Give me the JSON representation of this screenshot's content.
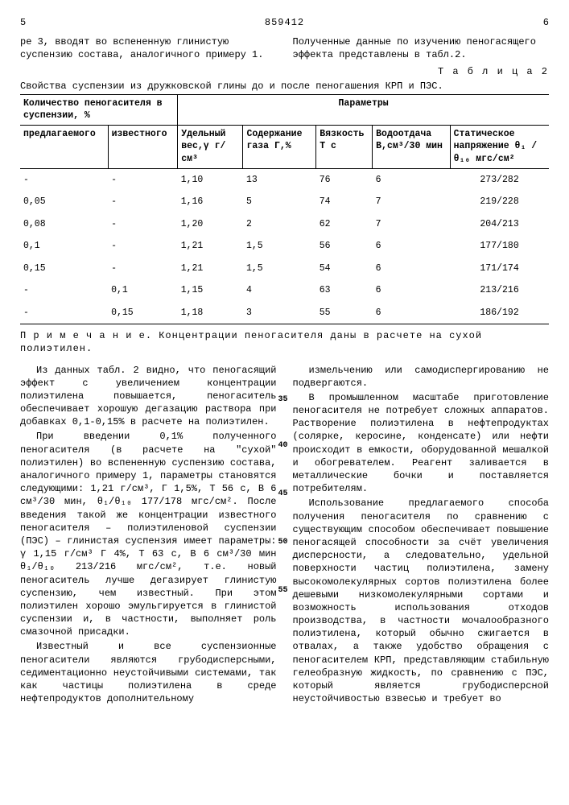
{
  "header": {
    "left_num": "5",
    "doc_num": "859412",
    "right_num": "6"
  },
  "intro": {
    "left": "ре 3, вводят во вспененную глинистую суспензию состава, аналогичного примеру 1.",
    "right": "Полученные данные по изучению пеногасящего эффекта представлены в табл.2."
  },
  "table_label": "Т а б л и ц а  2",
  "table_caption": "Свойства суспензии из дружковской глины до и после пеногашения КРП и ПЭС.",
  "th": {
    "qty": "Количество пеногасителя в суспензии, %",
    "params": "Параметры",
    "proposed": "предлагаемого",
    "known": "известного",
    "weight": "Удельный вес,γ г/см³",
    "gas": "Содержание газа Г,%",
    "visc": "Вязкость Т с",
    "water": "Водоотдача В,см³/30 мин",
    "static": "Статическое напряжение θ₁ /θ₁₀ мгс/см²"
  },
  "rows": [
    {
      "a": "-",
      "b": "-",
      "c": "1,10",
      "d": "13",
      "e": "76",
      "f": "6",
      "g": "273/282"
    },
    {
      "a": "0,05",
      "b": "-",
      "c": "1,16",
      "d": "5",
      "e": "74",
      "f": "7",
      "g": "219/228"
    },
    {
      "a": "0,08",
      "b": "-",
      "c": "1,20",
      "d": "2",
      "e": "62",
      "f": "7",
      "g": "204/213"
    },
    {
      "a": "0,1",
      "b": "-",
      "c": "1,21",
      "d": "1,5",
      "e": "56",
      "f": "6",
      "g": "177/180"
    },
    {
      "a": "0,15",
      "b": "-",
      "c": "1,21",
      "d": "1,5",
      "e": "54",
      "f": "6",
      "g": "171/174"
    },
    {
      "a": "-",
      "b": "0,1",
      "c": "1,15",
      "d": "4",
      "e": "63",
      "f": "6",
      "g": "213/216"
    },
    {
      "a": "-",
      "b": "0,15",
      "c": "1,18",
      "d": "3",
      "e": "55",
      "f": "6",
      "g": "186/192"
    }
  ],
  "note": "П р и м е ч а н и е. Концентрации пеногасителя даны в расчете на сухой полиэтилен.",
  "body": {
    "left": [
      "Из данных табл. 2 видно, что пеногасящий эффект с увеличением концентрации полиэтилена повышается, пеногаситель обеспечивает хорошую дегазацию раствора при добавках 0,1-0,15% в расчете на полиэтилен.",
      "При введении 0,1% полученного пеногасителя (в расчете на \"сухой\" полиэтилен) во вспененную суспензию состава, аналогичного примеру 1, параметры становятся следующими: 1,21 г/см³, Г 1,5%, Т 56 с, В 6 см³/30 мин, θ₁/θ₁₀ 177/178 мгс/см². После введения такой же концентрации известного пеногасителя – полиэтиленовой суспензии (ПЭС) – глинистая суспензия имеет параметры: γ 1,15 г/см³ Г 4%, Т 63 с, В 6 см³/30 мин θ₁/θ₁₀ 213/216 мгс/см², т.е. новый пеногаситель лучше дегазирует глинистую суспензию, чем известный. При этом полиэтилен хорошо эмульгируется в глинистой суспензии и, в частности, выполняет роль смазочной присадки.",
      "Известный и все суспензионные пеногасители являются грубодисперсными, седиментационно неустойчивыми системами, так как частицы полиэтилена в среде нефтепродуктов дополнительному"
    ],
    "right": [
      "измельчению или самодиспергированию не подвергаются.",
      "В промышленном масштабе приготовление пеногасителя не потребует сложных аппаратов. Растворение полиэтилена в нефтепродуктах (солярке, керосине, конденсате) или нефти происходит в емкости, оборудованной мешалкой и обогревателем. Реагент заливается в металлические бочки и поставляется потребителям.",
      "Использование предлагаемого способа получения пеногасителя по сравнению с существующим способом обеспечивает повышение пеногасящей способности за счёт увеличения дисперсности, а следовательно, удельной поверхности частиц полиэтилена, замену высокомолекулярных сортов полиэтилена более дешевыми низкомолекулярными сортами и возможность использования отходов производства, в частности мочалообразного полиэтилена, который обычно сжигается в отвалах, а также удобство обращения с пеногасителем КРП, представляющим стабильную гелеобразную жидкость, по сравнению с ПЭС, который является грубодисперсной неустойчивостью взвесью и требует во"
    ]
  },
  "line_marks": [
    "35",
    "40",
    "45",
    "50",
    "55"
  ]
}
